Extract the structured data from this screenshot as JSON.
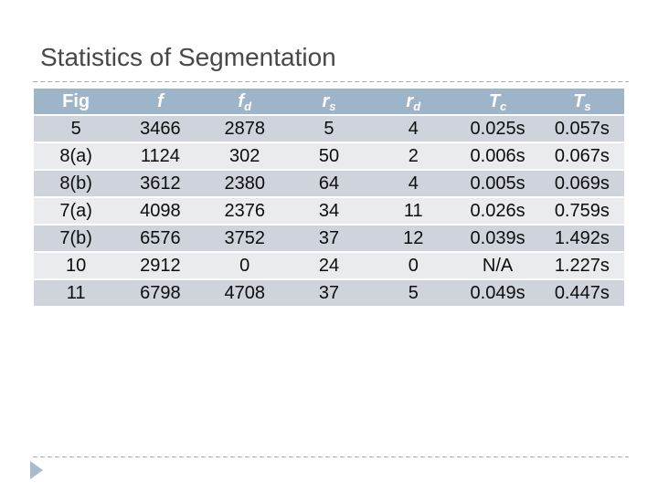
{
  "title": "Statistics of Segmentation",
  "table": {
    "columns": [
      {
        "label": "Fig",
        "sub": "",
        "italic": false
      },
      {
        "label": "f",
        "sub": "",
        "italic": true
      },
      {
        "label": "f",
        "sub": "d",
        "italic": true
      },
      {
        "label": "r",
        "sub": "s",
        "italic": true
      },
      {
        "label": "r",
        "sub": "d",
        "italic": true
      },
      {
        "label": "T",
        "sub": "c",
        "italic": true
      },
      {
        "label": "T",
        "sub": "s",
        "italic": true
      }
    ],
    "rows": [
      [
        "5",
        "3466",
        "2878",
        "5",
        "4",
        "0.025s",
        "0.057s"
      ],
      [
        "8(a)",
        "1124",
        "302",
        "50",
        "2",
        "0.006s",
        "0.067s"
      ],
      [
        "8(b)",
        "3612",
        "2380",
        "64",
        "4",
        "0.005s",
        "0.069s"
      ],
      [
        "7(a)",
        "4098",
        "2376",
        "34",
        "11",
        "0.026s",
        "0.759s"
      ],
      [
        "7(b)",
        "6576",
        "3752",
        "37",
        "12",
        "0.039s",
        "1.492s"
      ],
      [
        "10",
        "2912",
        "0",
        "24",
        "0",
        "N/A",
        "1.227s"
      ],
      [
        "11",
        "6798",
        "4708",
        "37",
        "5",
        "0.049s",
        "0.447s"
      ]
    ]
  },
  "icons": {
    "footer_arrow": "right-triangle-icon"
  },
  "colors": {
    "header_bg": "#9db4c9",
    "row_dark": "#ced3dc",
    "row_light": "#e9ebef",
    "title_text": "#47484b",
    "divider": "#a6acb3",
    "arrow": "#a7bacf"
  }
}
